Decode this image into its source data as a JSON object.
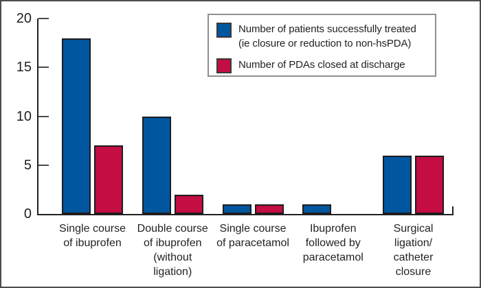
{
  "chart_data": {
    "type": "bar",
    "title": "",
    "xlabel": "",
    "ylabel": "",
    "ylim": [
      0,
      20
    ],
    "yticks": [
      0,
      5,
      10,
      15,
      20
    ],
    "grid": false,
    "legend_position": "top-right",
    "categories": [
      [
        "Single course",
        "of ibuprofen"
      ],
      [
        "Double course",
        "of ibuprofen",
        "(without",
        "ligation)"
      ],
      [
        "Single course",
        "of paracetamol"
      ],
      [
        "Ibuprofen",
        "followed by",
        "paracetamol"
      ],
      [
        "Surgical",
        "ligation/",
        "catheter",
        "closure"
      ]
    ],
    "series": [
      {
        "name": "Number of patients successfully treated (ie closure or reduction to non-hsPDA)",
        "color": "#00579f",
        "values": [
          18,
          10,
          1,
          1,
          6
        ]
      },
      {
        "name": "Number of PDAs closed at discharge",
        "color": "#c30d43",
        "values": [
          7,
          2,
          1,
          0,
          6
        ]
      }
    ]
  },
  "legend": {
    "item1_line1": "Number of patients successfully treated",
    "item1_line2": "(ie closure or reduction to non-hsPDA)",
    "item2": "Number of PDAs closed at discharge"
  }
}
